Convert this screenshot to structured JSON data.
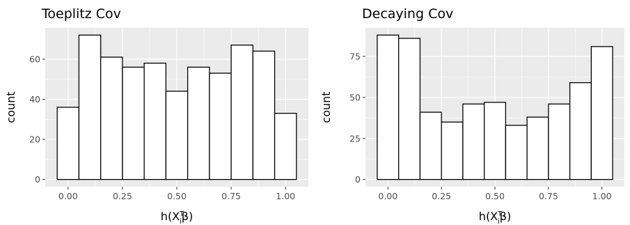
{
  "chart_data": [
    {
      "type": "bar",
      "title": "Toeplitz Cov",
      "xlabel": "h(X_i^T β)",
      "ylabel": "count",
      "bins": [
        {
          "x0": -0.05,
          "x1": 0.05,
          "count": 36
        },
        {
          "x0": 0.05,
          "x1": 0.15,
          "count": 72
        },
        {
          "x0": 0.15,
          "x1": 0.25,
          "count": 61
        },
        {
          "x0": 0.25,
          "x1": 0.35,
          "count": 56
        },
        {
          "x0": 0.35,
          "x1": 0.45,
          "count": 58
        },
        {
          "x0": 0.45,
          "x1": 0.55,
          "count": 44
        },
        {
          "x0": 0.55,
          "x1": 0.65,
          "count": 56
        },
        {
          "x0": 0.65,
          "x1": 0.75,
          "count": 53
        },
        {
          "x0": 0.75,
          "x1": 0.85,
          "count": 67
        },
        {
          "x0": 0.85,
          "x1": 0.95,
          "count": 64
        },
        {
          "x0": 0.95,
          "x1": 1.05,
          "count": 33
        }
      ],
      "xticks": [
        0.0,
        0.25,
        0.5,
        0.75,
        1.0
      ],
      "xtick_labels": [
        "0.00",
        "0.25",
        "0.50",
        "0.75",
        "1.00"
      ],
      "yticks": [
        0,
        20,
        40,
        60
      ],
      "ytick_labels": [
        "0",
        "20",
        "40",
        "60"
      ],
      "xlim": [
        -0.105,
        1.105
      ],
      "ylim": [
        -3.6,
        75.6
      ],
      "grid": true,
      "legend": "none",
      "colors": {
        "panel_bg": "#ebebeb",
        "grid": "#ffffff",
        "bar_fill": "#ffffff",
        "bar_stroke": "#000000"
      }
    },
    {
      "type": "bar",
      "title": "Decaying Cov",
      "xlabel": "h(X_i^T β)",
      "ylabel": "count",
      "bins": [
        {
          "x0": -0.05,
          "x1": 0.05,
          "count": 88
        },
        {
          "x0": 0.05,
          "x1": 0.15,
          "count": 86
        },
        {
          "x0": 0.15,
          "x1": 0.25,
          "count": 41
        },
        {
          "x0": 0.25,
          "x1": 0.35,
          "count": 35
        },
        {
          "x0": 0.35,
          "x1": 0.45,
          "count": 46
        },
        {
          "x0": 0.45,
          "x1": 0.55,
          "count": 47
        },
        {
          "x0": 0.55,
          "x1": 0.65,
          "count": 33
        },
        {
          "x0": 0.65,
          "x1": 0.75,
          "count": 38
        },
        {
          "x0": 0.75,
          "x1": 0.85,
          "count": 46
        },
        {
          "x0": 0.85,
          "x1": 0.95,
          "count": 59
        },
        {
          "x0": 0.95,
          "x1": 1.05,
          "count": 81
        }
      ],
      "xticks": [
        0.0,
        0.25,
        0.5,
        0.75,
        1.0
      ],
      "xtick_labels": [
        "0.00",
        "0.25",
        "0.50",
        "0.75",
        "1.00"
      ],
      "yticks": [
        0,
        25,
        50,
        75
      ],
      "ytick_labels": [
        "0",
        "25",
        "50",
        "75"
      ],
      "xlim": [
        -0.105,
        1.105
      ],
      "ylim": [
        -4.4,
        92.4
      ],
      "grid": true,
      "legend": "none",
      "colors": {
        "panel_bg": "#ebebeb",
        "grid": "#ffffff",
        "bar_fill": "#ffffff",
        "bar_stroke": "#000000"
      }
    }
  ]
}
